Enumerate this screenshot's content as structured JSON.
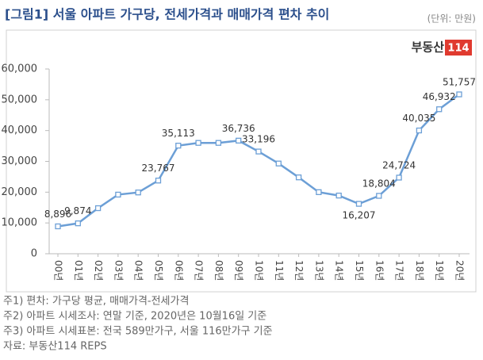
{
  "chart_data": {
    "type": "line",
    "title": "[그림1] 서울 아파트 가구당, 전세가격과 매매가격 편차 추이",
    "unit": "(단위: 만원)",
    "logo": [
      "부동산",
      "114"
    ],
    "categories": [
      "00년",
      "01년",
      "02년",
      "03년",
      "04년",
      "05년",
      "06년",
      "07년",
      "08년",
      "09년",
      "10년",
      "11년",
      "12년",
      "13년",
      "14년",
      "15년",
      "16년",
      "17년",
      "18년",
      "19년",
      "20년"
    ],
    "values": [
      8896,
      9874,
      14800,
      19200,
      19900,
      23767,
      35113,
      36000,
      36000,
      36736,
      33196,
      29300,
      24800,
      20000,
      18900,
      16207,
      18804,
      24724,
      40035,
      46932,
      51757
    ],
    "value_labels": [
      "8,896",
      "9,874",
      null,
      null,
      null,
      "23,767",
      "35,113",
      null,
      null,
      "36,736",
      "33,196",
      null,
      null,
      null,
      null,
      "16,207",
      "18,804",
      "24,724",
      "40,035",
      "46,932",
      "51,757"
    ],
    "color": "#6c9fd6",
    "ylim": [
      0,
      60000
    ],
    "yticks": [
      0,
      {
        "value": 10000,
        "label": "10,000"
      },
      {
        "value": 20000,
        "label": "20,000"
      },
      {
        "value": 30000,
        "label": "30,000"
      },
      {
        "value": 40000,
        "label": "40,000"
      },
      {
        "value": 50000,
        "label": "50,000"
      },
      {
        "value": 60000,
        "label": "60,000"
      }
    ],
    "notes": [
      "주1) 편차: 가구당 평균, 매매가격-전세가격",
      "주2) 아파트 시세조사: 연말 기준, 2020년은 10월16일 기준",
      "주3) 아파트 시세표본: 전국 589만가구, 서울 116만가구 기준",
      "자료: 부동산114 REPS"
    ]
  }
}
